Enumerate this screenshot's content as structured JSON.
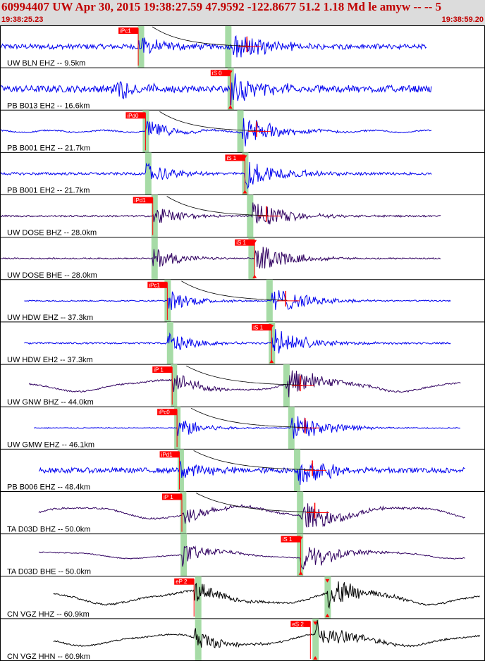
{
  "header": {
    "title": "60994407 UW Apr 30, 2015 19:38:27.59    47.9592 -122.8677 51.2 1.18 Md le amyw -- --    5",
    "start_time": "19:38:25.23",
    "end_time": "19:38:59.20"
  },
  "colors": {
    "header_bg": "#dcdcdc",
    "header_text": "#c00000",
    "pick": "#ff0000",
    "window": "#a6dba6",
    "trace_blue": "#0000ee",
    "trace_purple": "#300060",
    "trace_black": "#000000",
    "coda": "#000000"
  },
  "chart_data": {
    "type": "line",
    "title": "60994407 UW Apr 30, 2015 19:38:27.59    47.9592 -122.8677 51.2 1.18 Md le amyw -- --    5",
    "x_range": [
      "19:38:25.23",
      "19:38:59.20"
    ],
    "traces": [
      {
        "label": "UW BLN EHZ -- 9.5km",
        "color": "blue",
        "kind": "noise",
        "start": 0.0,
        "end": 0.88,
        "amp": 0.12,
        "onset": 0.285,
        "s_onset": 0.48,
        "pick": "iPc1",
        "pick_pos": 0.285,
        "windows": [
          0.29,
          0.47
        ],
        "coda": true
      },
      {
        "label": "PB B013 EH2 -- 16.6km",
        "color": "blue",
        "kind": "noise",
        "start": 0.0,
        "end": 0.89,
        "amp": 0.16,
        "onset": 0.23,
        "s_onset": 0.475,
        "pick": "iS 0",
        "pick_pos": 0.475,
        "windows": [
          0.475
        ],
        "coda": false
      },
      {
        "label": "PB B001 EHZ -- 21.7km",
        "color": "blue",
        "kind": "lowfreq",
        "start": 0.0,
        "end": 0.89,
        "amp": 0.1,
        "onset": 0.3,
        "s_onset": 0.5,
        "pick": "iPd0",
        "pick_pos": 0.3,
        "windows": [
          0.3,
          0.495
        ],
        "coda": true
      },
      {
        "label": "PB B001 EH2 -- 21.7km",
        "color": "blue",
        "kind": "quiet",
        "start": 0.0,
        "end": 0.89,
        "amp": 0.06,
        "onset": 0.3,
        "s_onset": 0.505,
        "pick": "iS 1",
        "pick_pos": 0.505,
        "windows": [
          0.305,
          0.505
        ],
        "coda": false
      },
      {
        "label": "UW DOSE BHZ -- 28.0km",
        "color": "purple",
        "kind": "quiet",
        "start": 0.0,
        "end": 0.91,
        "amp": 0.04,
        "onset": 0.315,
        "s_onset": 0.52,
        "pick": "iPd1",
        "pick_pos": 0.315,
        "windows": [
          0.318,
          0.515
        ],
        "coda": true
      },
      {
        "label": "UW DOSE BHE -- 28.0km",
        "color": "purple",
        "kind": "quiet",
        "start": 0.0,
        "end": 0.91,
        "amp": 0.03,
        "onset": 0.315,
        "s_onset": 0.525,
        "pick": "iS 1",
        "pick_pos": 0.525,
        "windows": [
          0.318,
          0.518
        ],
        "coda": false
      },
      {
        "label": "UW HDW EHZ -- 37.3km",
        "color": "blue",
        "kind": "quiet",
        "start": 0.05,
        "end": 0.93,
        "amp": 0.03,
        "onset": 0.345,
        "s_onset": 0.56,
        "pick": "iPc1",
        "pick_pos": 0.345,
        "windows": [
          0.345,
          0.555
        ],
        "coda": true
      },
      {
        "label": "UW HDW EH2 -- 37.3km",
        "color": "blue",
        "kind": "quiet",
        "start": 0.05,
        "end": 0.93,
        "amp": 0.04,
        "onset": 0.345,
        "s_onset": 0.56,
        "pick": "iS 1",
        "pick_pos": 0.56,
        "windows": [
          0.35,
          0.56
        ],
        "coda": false
      },
      {
        "label": "UW GNW BHZ -- 44.0km",
        "color": "purple",
        "kind": "wave",
        "start": 0.06,
        "end": 0.95,
        "amp": 0.3,
        "onset": 0.355,
        "s_onset": 0.59,
        "pick": "iP 1",
        "pick_pos": 0.355,
        "windows": [
          0.358,
          0.59
        ],
        "coda": true
      },
      {
        "label": "UW GMW EHZ -- 46.1km",
        "color": "blue",
        "kind": "quiet",
        "start": 0.07,
        "end": 0.95,
        "amp": 0.02,
        "onset": 0.365,
        "s_onset": 0.6,
        "pick": "iPc0",
        "pick_pos": 0.365,
        "windows": [
          0.365,
          0.6
        ],
        "coda": true
      },
      {
        "label": "PB B006 EHZ -- 48.4km",
        "color": "blue",
        "kind": "noise",
        "start": 0.08,
        "end": 0.96,
        "amp": 0.12,
        "onset": 0.37,
        "s_onset": 0.615,
        "pick": "iPd1",
        "pick_pos": 0.37,
        "windows": [
          0.372,
          0.612
        ],
        "coda": true
      },
      {
        "label": "TA D03D BHZ -- 50.0km",
        "color": "purple",
        "kind": "wave",
        "start": 0.08,
        "end": 0.96,
        "amp": 0.32,
        "onset": 0.375,
        "s_onset": 0.62,
        "pick": "iP 1",
        "pick_pos": 0.375,
        "windows": [
          0.377,
          0.618
        ],
        "coda": true
      },
      {
        "label": "TA D03D BHE -- 50.0km",
        "color": "purple",
        "kind": "wave",
        "start": 0.08,
        "end": 0.96,
        "amp": 0.18,
        "onset": 0.375,
        "s_onset": 0.62,
        "pick": "iS 1",
        "pick_pos": 0.62,
        "windows": [
          0.378,
          0.618
        ],
        "coda": false
      },
      {
        "label": "CN VGZ HHZ -- 60.9km",
        "color": "black",
        "kind": "wave",
        "start": 0.11,
        "end": 0.99,
        "amp": 0.35,
        "onset": 0.4,
        "s_onset": 0.675,
        "pick": "eP 2",
        "pick_pos": 0.4,
        "windows": [
          0.408,
          0.675
        ],
        "coda": false
      },
      {
        "label": "CN VGZ HHN -- 60.9km",
        "color": "black",
        "kind": "wave",
        "start": 0.11,
        "end": 0.99,
        "amp": 0.3,
        "onset": 0.4,
        "s_onset": 0.65,
        "pick": "eS 2",
        "pick_pos": 0.64,
        "windows": [
          0.408,
          0.65
        ],
        "coda": false
      }
    ]
  }
}
